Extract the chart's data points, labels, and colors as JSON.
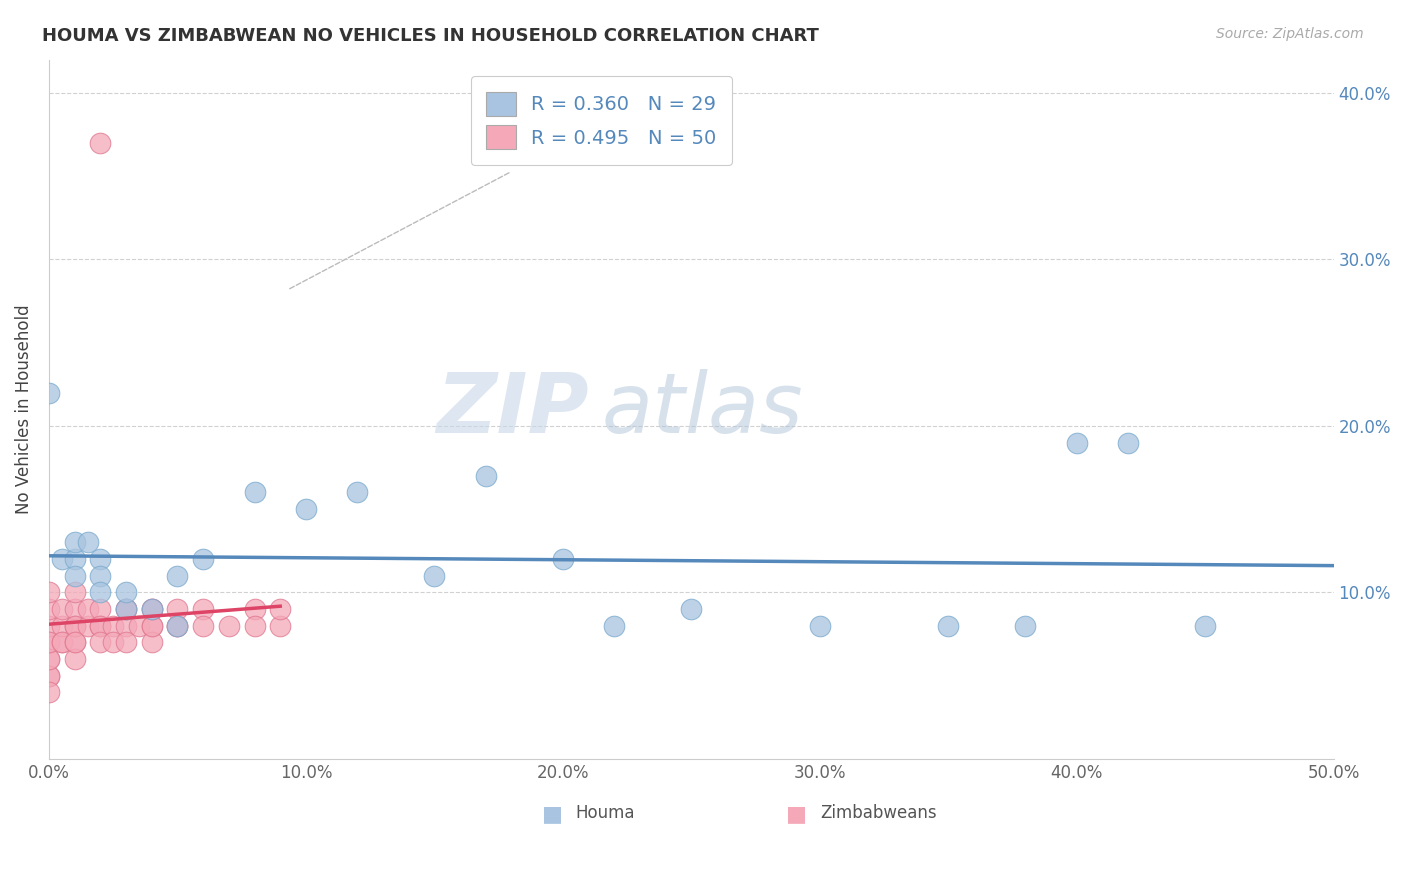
{
  "title": "HOUMA VS ZIMBABWEAN NO VEHICLES IN HOUSEHOLD CORRELATION CHART",
  "source": "Source: ZipAtlas.com",
  "xlabel_houma": "Houma",
  "xlabel_zimbabweans": "Zimbabweans",
  "ylabel": "No Vehicles in Household",
  "xlim": [
    0.0,
    0.5
  ],
  "ylim": [
    0.0,
    0.42
  ],
  "xticks": [
    0.0,
    0.1,
    0.2,
    0.3,
    0.4,
    0.5
  ],
  "xtick_labels": [
    "0.0%",
    "10.0%",
    "20.0%",
    "30.0%",
    "40.0%",
    "50.0%"
  ],
  "yticks": [
    0.1,
    0.2,
    0.3,
    0.4
  ],
  "ytick_labels": [
    "10.0%",
    "20.0%",
    "30.0%",
    "40.0%"
  ],
  "right_ytick_labels": [
    "10.0%",
    "20.0%",
    "30.0%",
    "40.0%"
  ],
  "legend_r1": "R = 0.360",
  "legend_n1": "N = 29",
  "legend_r2": "R = 0.495",
  "legend_n2": "N = 50",
  "color_houma": "#a8c4e0",
  "color_houma_edge": "#7aaace",
  "color_zimbabweans": "#f4a8b8",
  "color_zimbabweans_edge": "#e07890",
  "color_line_houma": "#5588bb",
  "color_line_zimbabweans": "#dd4466",
  "watermark_zip": "ZIP",
  "watermark_atlas": "atlas",
  "houma_x": [
    0.0,
    0.005,
    0.01,
    0.01,
    0.01,
    0.015,
    0.02,
    0.02,
    0.02,
    0.03,
    0.03,
    0.04,
    0.05,
    0.05,
    0.06,
    0.08,
    0.1,
    0.12,
    0.15,
    0.17,
    0.2,
    0.22,
    0.25,
    0.3,
    0.35,
    0.38,
    0.4,
    0.42,
    0.45
  ],
  "houma_y": [
    0.22,
    0.12,
    0.12,
    0.13,
    0.11,
    0.13,
    0.12,
    0.11,
    0.1,
    0.09,
    0.1,
    0.09,
    0.08,
    0.11,
    0.12,
    0.16,
    0.15,
    0.16,
    0.11,
    0.17,
    0.12,
    0.08,
    0.09,
    0.08,
    0.08,
    0.08,
    0.19,
    0.19,
    0.08
  ],
  "zimbabweans_x": [
    0.0,
    0.0,
    0.0,
    0.0,
    0.0,
    0.0,
    0.0,
    0.0,
    0.0,
    0.0,
    0.005,
    0.005,
    0.005,
    0.005,
    0.01,
    0.01,
    0.01,
    0.01,
    0.01,
    0.01,
    0.01,
    0.015,
    0.015,
    0.02,
    0.02,
    0.02,
    0.02,
    0.025,
    0.025,
    0.03,
    0.03,
    0.03,
    0.03,
    0.035,
    0.04,
    0.04,
    0.04,
    0.04,
    0.04,
    0.05,
    0.05,
    0.05,
    0.06,
    0.06,
    0.07,
    0.08,
    0.08,
    0.09,
    0.09,
    0.02
  ],
  "zimbabweans_y": [
    0.05,
    0.06,
    0.07,
    0.08,
    0.09,
    0.1,
    0.05,
    0.06,
    0.07,
    0.04,
    0.07,
    0.08,
    0.07,
    0.09,
    0.08,
    0.07,
    0.06,
    0.09,
    0.08,
    0.1,
    0.07,
    0.08,
    0.09,
    0.08,
    0.09,
    0.08,
    0.07,
    0.08,
    0.07,
    0.09,
    0.08,
    0.07,
    0.09,
    0.08,
    0.08,
    0.09,
    0.07,
    0.08,
    0.09,
    0.08,
    0.09,
    0.08,
    0.09,
    0.08,
    0.08,
    0.09,
    0.08,
    0.08,
    0.09,
    0.37
  ]
}
